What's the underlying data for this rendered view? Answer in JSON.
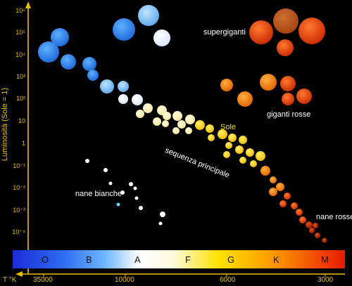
{
  "y_axis": {
    "label": "Luminosità (Sole = 1)",
    "ticks": [
      "10⁶",
      "10⁵",
      "10⁴",
      "10³",
      "10²",
      "10",
      "1",
      "10⁻¹",
      "10⁻²",
      "10⁻³",
      "10⁻⁴"
    ]
  },
  "x_axis": {
    "unit_label": "T °K",
    "ticks": [
      "35000",
      "10000",
      "6000",
      "3000"
    ]
  },
  "spectral_classes": [
    "O",
    "B",
    "A",
    "F",
    "G",
    "K",
    "M"
  ],
  "annotations": {
    "supergiants": "supergiganti",
    "red_giants": "giganti rosse",
    "sun": "Sole",
    "main_sequence": "sequenza principale",
    "white_dwarfs": "nane bianche",
    "red_dwarfs": "nane rosse"
  },
  "colors": {
    "axis": "#e8c000",
    "O": "#1e6fe0",
    "B": "#4aa8f0",
    "A": "#f4f6ff",
    "F": "#fff2a0",
    "G": "#ffd400",
    "K": "#ff9a20",
    "M": "#e02a10"
  }
}
